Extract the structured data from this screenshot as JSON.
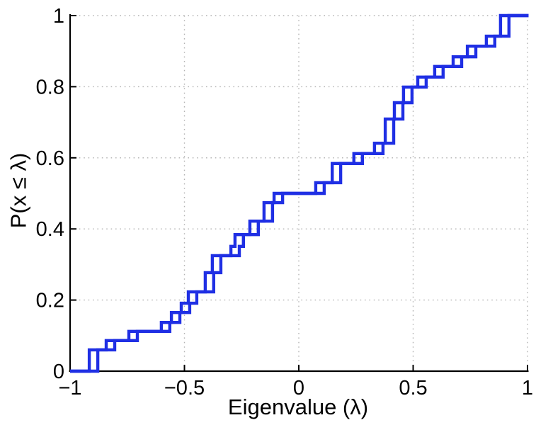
{
  "figure": {
    "background": "#ffffff"
  },
  "chart_data": {
    "type": "line",
    "subtype": "empirical-cdf-stairs",
    "title": "",
    "xlabel": "Eigenvalue (λ)",
    "ylabel": "P(x ≤ λ)",
    "xlim": [
      -1,
      1
    ],
    "ylim": [
      0,
      1
    ],
    "x_ticks": [
      -1,
      -0.5,
      0,
      0.5,
      1
    ],
    "x_tick_labels": [
      "−1",
      "−0.5",
      "0",
      "0.5",
      "1"
    ],
    "y_ticks": [
      0,
      0.2,
      0.4,
      0.6,
      0.8,
      1
    ],
    "y_tick_labels": [
      "0",
      "0.2",
      "0.4",
      "0.6",
      "0.8",
      "1"
    ],
    "grid": "dotted",
    "legend_position": "none",
    "line_color": "#1f2fe4",
    "grid_color": "#b3b3b3",
    "axis_color": "#000000",
    "tick_label_color": "#000000",
    "series": [
      {
        "name": "ecdf-curve-a",
        "lambda_offset": 0,
        "steps": [
          [
            -0.916,
            0.06
          ],
          [
            -0.842,
            0.086
          ],
          [
            -0.743,
            0.112
          ],
          [
            -0.601,
            0.137
          ],
          [
            -0.557,
            0.165
          ],
          [
            -0.514,
            0.191
          ],
          [
            -0.483,
            0.223
          ],
          [
            -0.409,
            0.277
          ],
          [
            -0.378,
            0.325
          ],
          [
            -0.297,
            0.351
          ],
          [
            -0.279,
            0.384
          ],
          [
            -0.214,
            0.422
          ],
          [
            -0.152,
            0.474
          ],
          [
            -0.108,
            0.5
          ],
          [
            0.074,
            0.53
          ],
          [
            0.146,
            0.584
          ],
          [
            0.241,
            0.612
          ],
          [
            0.331,
            0.641
          ],
          [
            0.378,
            0.709
          ],
          [
            0.418,
            0.755
          ],
          [
            0.458,
            0.799
          ],
          [
            0.52,
            0.827
          ],
          [
            0.594,
            0.857
          ],
          [
            0.675,
            0.884
          ],
          [
            0.737,
            0.914
          ],
          [
            0.82,
            0.942
          ],
          [
            0.882,
            1.0
          ]
        ]
      },
      {
        "name": "ecdf-curve-b",
        "lambda_offset": 0.037,
        "steps": "same-as-curve-a"
      }
    ]
  }
}
